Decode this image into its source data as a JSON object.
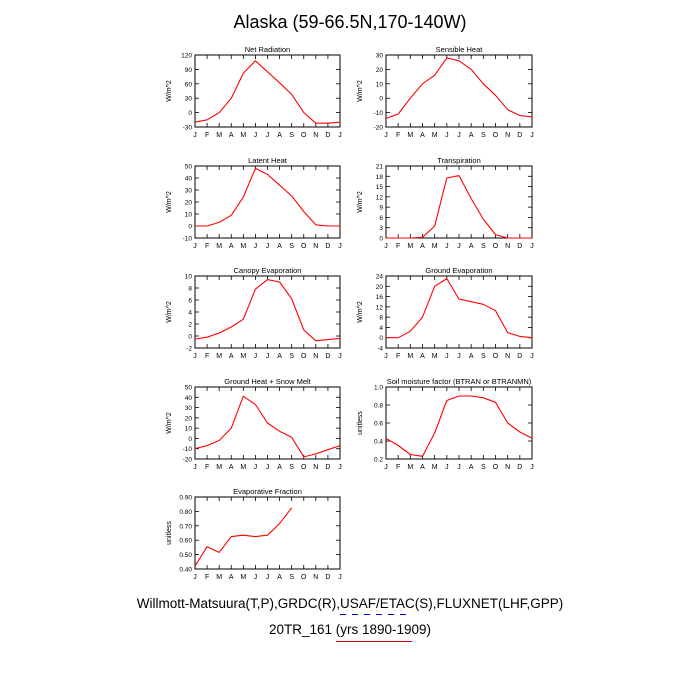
{
  "title": "Alaska (59-66.5N,170-140W)",
  "credits": "Willmott-Matsuura(T,P),GRDC(R),USAF/ETAC(S),FLUXNET(LHF,GPP)",
  "run_label": "20TR_161 (yrs 1890-1909)",
  "colors": {
    "line": "#ff0000",
    "dashes": "#0000cc",
    "underline": "#cc0000"
  },
  "chart_data": [
    {
      "type": "line",
      "title": "Net Radiation",
      "ylabel": "W/m^2",
      "categories": [
        "J",
        "F",
        "M",
        "A",
        "M",
        "J",
        "J",
        "A",
        "S",
        "O",
        "N",
        "D",
        "J"
      ],
      "ylim": [
        -30,
        120
      ],
      "yticks": [
        -30,
        0,
        30,
        60,
        90,
        120
      ],
      "yticklabels": [
        "-30",
        "0",
        "30",
        "60",
        "90",
        "120"
      ],
      "values": [
        -20,
        -15,
        0,
        30,
        82,
        108,
        85,
        62,
        38,
        0,
        -22,
        -22,
        -20
      ]
    },
    {
      "type": "line",
      "title": "Sensible Heat",
      "ylabel": "W/m^2",
      "categories": [
        "J",
        "F",
        "M",
        "A",
        "M",
        "J",
        "J",
        "A",
        "S",
        "O",
        "N",
        "D",
        "J"
      ],
      "ylim": [
        -20,
        30
      ],
      "yticks": [
        -20,
        -10,
        0,
        10,
        20,
        30
      ],
      "yticklabels": [
        "-20",
        "-10",
        "0",
        "10",
        "20",
        "30"
      ],
      "values": [
        -14,
        -11,
        0,
        10,
        16,
        28,
        26,
        20,
        10,
        2,
        -8,
        -12,
        -13
      ]
    },
    {
      "type": "line",
      "title": "Latent Heat",
      "ylabel": "W/m^2",
      "categories": [
        "J",
        "F",
        "M",
        "A",
        "M",
        "J",
        "J",
        "A",
        "S",
        "O",
        "N",
        "D",
        "J"
      ],
      "ylim": [
        -10,
        50
      ],
      "yticks": [
        -10,
        0,
        10,
        20,
        30,
        40,
        50
      ],
      "yticklabels": [
        "-10",
        "0",
        "10",
        "20",
        "30",
        "40",
        "50"
      ],
      "values": [
        0,
        0,
        3,
        9,
        24,
        48,
        43,
        34,
        25,
        12,
        1,
        0,
        0
      ]
    },
    {
      "type": "line",
      "title": "Transpiration",
      "ylabel": "W/m^2",
      "categories": [
        "J",
        "F",
        "M",
        "A",
        "M",
        "J",
        "J",
        "A",
        "S",
        "O",
        "N",
        "D",
        "J"
      ],
      "ylim": [
        0,
        21
      ],
      "yticks": [
        0,
        3,
        6,
        9,
        12,
        15,
        18,
        21
      ],
      "yticklabels": [
        "0",
        "3",
        "6",
        "9",
        "12",
        "15",
        "18",
        "21"
      ],
      "values": [
        0,
        0,
        0,
        0.2,
        3.5,
        17.5,
        18.2,
        11.5,
        5.5,
        1,
        0,
        0,
        0
      ]
    },
    {
      "type": "line",
      "title": "Canopy Evaporation",
      "ylabel": "W/m^2",
      "categories": [
        "J",
        "F",
        "M",
        "A",
        "M",
        "J",
        "J",
        "A",
        "S",
        "O",
        "N",
        "D",
        "J"
      ],
      "ylim": [
        -2,
        10
      ],
      "yticks": [
        -2,
        0,
        2,
        4,
        6,
        8,
        10
      ],
      "yticklabels": [
        "-2",
        "0",
        "2",
        "4",
        "6",
        "8",
        "10"
      ],
      "values": [
        -0.5,
        -0.2,
        0.5,
        1.5,
        2.8,
        7.8,
        9.4,
        9.0,
        6.2,
        1.0,
        -0.8,
        -0.6,
        -0.4
      ]
    },
    {
      "type": "line",
      "title": "Ground Evaporation",
      "ylabel": "W/m^2",
      "categories": [
        "J",
        "F",
        "M",
        "A",
        "M",
        "J",
        "J",
        "A",
        "S",
        "O",
        "N",
        "D",
        "J"
      ],
      "ylim": [
        -4,
        24
      ],
      "yticks": [
        -4,
        0,
        4,
        8,
        12,
        16,
        20,
        24
      ],
      "yticklabels": [
        "-4",
        "0",
        "4",
        "8",
        "12",
        "16",
        "20",
        "24"
      ],
      "values": [
        0,
        0,
        2.5,
        8,
        20,
        23,
        15,
        14,
        13,
        10.5,
        2,
        0.5,
        0
      ]
    },
    {
      "type": "line",
      "title": "Ground Heat + Snow Melt",
      "ylabel": "W/m^2",
      "categories": [
        "J",
        "F",
        "M",
        "A",
        "M",
        "J",
        "J",
        "A",
        "S",
        "O",
        "N",
        "D",
        "J"
      ],
      "ylim": [
        -20,
        50
      ],
      "yticks": [
        -20,
        -10,
        0,
        10,
        20,
        30,
        40,
        50
      ],
      "yticklabels": [
        "-20",
        "-10",
        "0",
        "10",
        "20",
        "30",
        "40",
        "50"
      ],
      "values": [
        -10,
        -7,
        -2,
        10,
        41,
        33,
        15,
        7,
        1,
        -18,
        -15,
        -11,
        -7
      ]
    },
    {
      "type": "line",
      "title": "Soil moisture factor (BTRAN or BTRANMN)",
      "ylabel": "unitless",
      "categories": [
        "J",
        "F",
        "M",
        "A",
        "M",
        "J",
        "J",
        "A",
        "S",
        "O",
        "N",
        "D",
        "J"
      ],
      "ylim": [
        0.2,
        1.0
      ],
      "yticks": [
        0.2,
        0.4,
        0.6,
        0.8,
        1.0
      ],
      "yticklabels": [
        "0.2",
        "0.4",
        "0.6",
        "0.8",
        "1.0"
      ],
      "values": [
        0.43,
        0.35,
        0.25,
        0.23,
        0.49,
        0.85,
        0.9,
        0.9,
        0.88,
        0.83,
        0.6,
        0.5,
        0.43
      ]
    },
    {
      "type": "line",
      "title": "Evaporative Fraction",
      "ylabel": "unitless",
      "categories": [
        "J",
        "F",
        "M",
        "A",
        "M",
        "J",
        "J",
        "A",
        "S",
        "O",
        "N",
        "D",
        "J"
      ],
      "ylim": [
        0.4,
        0.9
      ],
      "yticks": [
        0.4,
        0.5,
        0.6,
        0.7,
        0.8,
        0.9
      ],
      "yticklabels": [
        "0.40",
        "0.50",
        "0.60",
        "0.70",
        "0.80",
        "0.90"
      ],
      "values": [
        0.42,
        0.555,
        0.515,
        0.625,
        0.635,
        0.625,
        0.635,
        0.715,
        0.825,
        null,
        null,
        null,
        null
      ]
    }
  ]
}
